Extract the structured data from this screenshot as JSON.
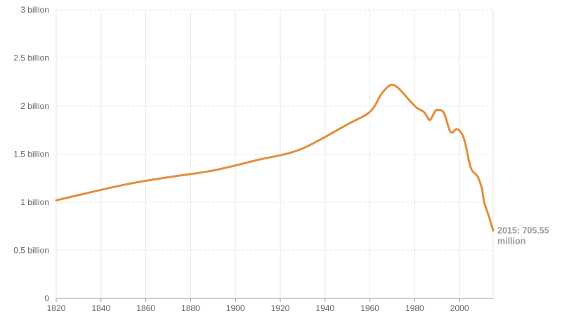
{
  "chart_data": {
    "type": "line",
    "title": "",
    "xlabel": "",
    "ylabel": "",
    "xlim": [
      1820,
      2015
    ],
    "ylim": [
      0,
      3000000000
    ],
    "grid": true,
    "x_ticks": [
      1820,
      1840,
      1860,
      1880,
      1900,
      1920,
      1940,
      1960,
      1980,
      2000
    ],
    "x_tick_labels": [
      "1820",
      "1840",
      "1860",
      "1880",
      "1900",
      "1920",
      "1940",
      "1960",
      "1980",
      "2000"
    ],
    "y_ticks": [
      0,
      500000000,
      1000000000,
      1500000000,
      2000000000,
      2500000000,
      3000000000
    ],
    "y_tick_labels": [
      "0",
      "0.5 billion",
      "1 billion",
      "1.5 billion",
      "2 billion",
      "2.5 billion",
      "3 billion"
    ],
    "series": [
      {
        "color": "#e38d3c",
        "x": [
          1820,
          1850,
          1870,
          1890,
          1910,
          1929,
          1950,
          1960,
          1965,
          1968,
          1970,
          1972,
          1975,
          1978,
          1981,
          1984,
          1986,
          1987,
          1989,
          1990,
          1993,
          1996,
          1999,
          2002,
          2005,
          2008,
          2010,
          2011,
          2013,
          2015
        ],
        "y": [
          1020000000,
          1180000000,
          1260000000,
          1330000000,
          1440000000,
          1550000000,
          1810000000,
          1940000000,
          2120000000,
          2200000000,
          2220000000,
          2200000000,
          2130000000,
          2050000000,
          1980000000,
          1940000000,
          1870000000,
          1860000000,
          1940000000,
          1960000000,
          1930000000,
          1730000000,
          1760000000,
          1660000000,
          1360000000,
          1270000000,
          1140000000,
          1000000000,
          860000000,
          705550000
        ]
      }
    ],
    "end_label": {
      "line1": "2015: 705.55",
      "line2": "million"
    }
  }
}
